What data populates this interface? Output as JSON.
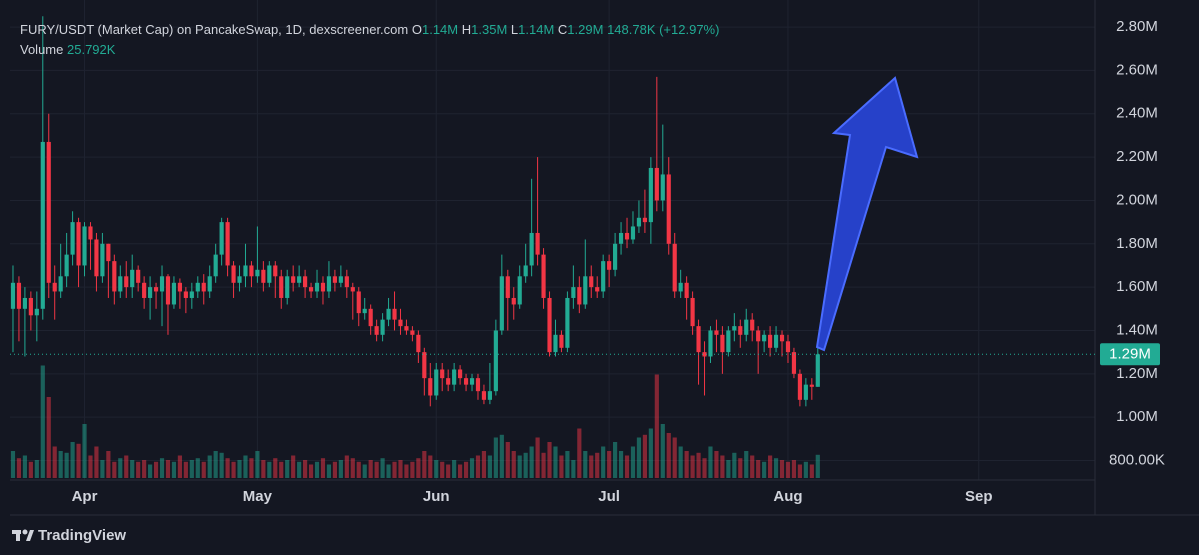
{
  "chart_data": {
    "type": "candlestick",
    "title": "FURY/USDT (Market Cap) on PancakeSwap, 1D, dexscreener.com",
    "ohlc_names": [
      "O",
      "H",
      "L",
      "C"
    ],
    "ohlc_labels": [
      "1.14M",
      "1.35M",
      "1.14M",
      "1.29M"
    ],
    "change": "148.78K (+12.97%)",
    "volume_name": "Volume",
    "volume_label": "25.792K",
    "brand": "TradingView",
    "up_color": "#22ab94",
    "down_color": "#f23645",
    "grid": true,
    "xlim": [
      -0.5,
      181.5
    ],
    "xticks": [
      {
        "value": 12,
        "label": "Apr"
      },
      {
        "value": 41,
        "label": "May"
      },
      {
        "value": 71,
        "label": "Jun"
      },
      {
        "value": 100,
        "label": "Jul"
      },
      {
        "value": 130,
        "label": "Aug"
      },
      {
        "value": 162,
        "label": "Sep"
      }
    ],
    "ylim": [
      0.71,
      2.925
    ],
    "yticks": [
      {
        "value": 0.8,
        "label": "800.00K"
      },
      {
        "value": 1.0,
        "label": "1.00M"
      },
      {
        "value": 1.2,
        "label": "1.20M"
      },
      {
        "value": 1.4,
        "label": "1.40M"
      },
      {
        "value": 1.6,
        "label": "1.60M"
      },
      {
        "value": 1.8,
        "label": "1.80M"
      },
      {
        "value": 2.0,
        "label": "2.00M"
      },
      {
        "value": 2.2,
        "label": "2.20M"
      },
      {
        "value": 2.4,
        "label": "2.40M"
      },
      {
        "value": 2.6,
        "label": "2.60M"
      },
      {
        "value": 2.8,
        "label": "2.80M"
      }
    ],
    "last_price": {
      "value": 1.29,
      "label": "1.29M"
    },
    "open": [
      1.5,
      1.62,
      1.5,
      1.55,
      1.47,
      1.5,
      2.27,
      1.62,
      1.58,
      1.65,
      1.75,
      1.9,
      1.7,
      1.88,
      1.82,
      1.65,
      1.8,
      1.72,
      1.58,
      1.65,
      1.6,
      1.68,
      1.62,
      1.55,
      1.6,
      1.58,
      1.65,
      1.52,
      1.62,
      1.58,
      1.55,
      1.58,
      1.62,
      1.58,
      1.65,
      1.75,
      1.9,
      1.7,
      1.62,
      1.65,
      1.7,
      1.65,
      1.68,
      1.62,
      1.7,
      1.65,
      1.55,
      1.65,
      1.62,
      1.65,
      1.6,
      1.58,
      1.62,
      1.58,
      1.65,
      1.62,
      1.65,
      1.6,
      1.58,
      1.48,
      1.5,
      1.42,
      1.38,
      1.45,
      1.5,
      1.45,
      1.42,
      1.4,
      1.38,
      1.3,
      1.18,
      1.1,
      1.22,
      1.18,
      1.15,
      1.22,
      1.18,
      1.15,
      1.18,
      1.12,
      1.08,
      1.12,
      1.4,
      1.65,
      1.55,
      1.52,
      1.65,
      1.7,
      1.85,
      1.75,
      1.55,
      1.3,
      1.38,
      1.32,
      1.55,
      1.6,
      1.52,
      1.65,
      1.6,
      1.58,
      1.72,
      1.68,
      1.8,
      1.85,
      1.82,
      1.88,
      1.92,
      1.9,
      2.15,
      2.0,
      2.12,
      1.8,
      1.58,
      1.62,
      1.55,
      1.42,
      1.3,
      1.28,
      1.4,
      1.38,
      1.3,
      1.4,
      1.42,
      1.38,
      1.45,
      1.4,
      1.35,
      1.38,
      1.32,
      1.38,
      1.35,
      1.3,
      1.2,
      1.08,
      1.15,
      1.14
    ],
    "high": [
      1.7,
      1.65,
      1.6,
      1.58,
      1.58,
      2.85,
      2.4,
      1.7,
      1.8,
      1.85,
      1.95,
      1.92,
      1.9,
      1.9,
      1.85,
      1.85,
      1.8,
      1.75,
      1.7,
      1.72,
      1.75,
      1.7,
      1.65,
      1.65,
      1.62,
      1.7,
      1.66,
      1.65,
      1.64,
      1.6,
      1.62,
      1.65,
      1.66,
      1.7,
      1.8,
      1.92,
      1.92,
      1.72,
      1.7,
      1.8,
      1.72,
      1.88,
      1.72,
      1.72,
      1.72,
      1.68,
      1.68,
      1.7,
      1.7,
      1.68,
      1.62,
      1.68,
      1.65,
      1.72,
      1.68,
      1.7,
      1.68,
      1.62,
      1.6,
      1.55,
      1.52,
      1.45,
      1.48,
      1.55,
      1.58,
      1.5,
      1.45,
      1.42,
      1.4,
      1.32,
      1.25,
      1.25,
      1.25,
      1.22,
      1.25,
      1.24,
      1.2,
      1.2,
      1.2,
      1.15,
      1.25,
      1.45,
      1.75,
      1.68,
      1.6,
      1.7,
      1.8,
      2.1,
      2.2,
      1.78,
      1.58,
      1.45,
      1.4,
      1.58,
      1.7,
      1.65,
      1.82,
      1.7,
      1.65,
      1.75,
      1.75,
      1.85,
      1.9,
      1.92,
      1.95,
      2.0,
      2.05,
      2.2,
      2.57,
      2.35,
      2.2,
      1.85,
      1.68,
      1.65,
      1.58,
      1.45,
      1.35,
      1.42,
      1.45,
      1.42,
      1.42,
      1.48,
      1.45,
      1.5,
      1.48,
      1.42,
      1.4,
      1.42,
      1.42,
      1.4,
      1.38,
      1.32,
      1.22,
      1.18,
      1.18,
      1.35
    ],
    "low": [
      1.3,
      1.35,
      1.28,
      1.4,
      1.35,
      1.45,
      1.55,
      1.45,
      1.55,
      1.6,
      1.7,
      1.6,
      1.65,
      1.68,
      1.58,
      1.62,
      1.55,
      1.52,
      1.55,
      1.55,
      1.55,
      1.58,
      1.5,
      1.45,
      1.5,
      1.42,
      1.38,
      1.5,
      1.5,
      1.48,
      1.5,
      1.55,
      1.52,
      1.55,
      1.62,
      1.7,
      1.65,
      1.55,
      1.58,
      1.6,
      1.6,
      1.62,
      1.58,
      1.6,
      1.55,
      1.5,
      1.52,
      1.58,
      1.6,
      1.55,
      1.55,
      1.55,
      1.52,
      1.55,
      1.58,
      1.6,
      1.55,
      1.45,
      1.42,
      1.45,
      1.38,
      1.35,
      1.35,
      1.42,
      1.4,
      1.38,
      1.38,
      1.35,
      1.25,
      1.1,
      1.05,
      1.08,
      1.12,
      1.12,
      1.12,
      1.15,
      1.12,
      1.12,
      1.08,
      1.06,
      1.06,
      1.1,
      1.38,
      1.4,
      1.45,
      1.5,
      1.62,
      1.65,
      1.7,
      1.5,
      1.28,
      1.28,
      1.3,
      1.3,
      1.5,
      1.48,
      1.5,
      1.55,
      1.55,
      1.55,
      1.6,
      1.65,
      1.75,
      1.78,
      1.8,
      1.85,
      1.85,
      1.8,
      1.95,
      1.95,
      1.75,
      1.55,
      1.55,
      1.45,
      1.38,
      1.15,
      1.1,
      1.25,
      1.3,
      1.2,
      1.28,
      1.35,
      1.32,
      1.35,
      1.35,
      1.2,
      1.3,
      1.28,
      1.3,
      1.28,
      1.25,
      1.18,
      1.05,
      1.05,
      1.08,
      1.14
    ],
    "close": [
      1.62,
      1.5,
      1.55,
      1.47,
      1.5,
      2.27,
      1.62,
      1.58,
      1.65,
      1.75,
      1.9,
      1.7,
      1.88,
      1.82,
      1.65,
      1.8,
      1.72,
      1.58,
      1.65,
      1.6,
      1.68,
      1.62,
      1.55,
      1.6,
      1.58,
      1.65,
      1.52,
      1.62,
      1.58,
      1.55,
      1.58,
      1.62,
      1.58,
      1.65,
      1.75,
      1.9,
      1.7,
      1.62,
      1.65,
      1.7,
      1.65,
      1.68,
      1.62,
      1.7,
      1.65,
      1.55,
      1.65,
      1.62,
      1.65,
      1.6,
      1.58,
      1.62,
      1.58,
      1.65,
      1.62,
      1.65,
      1.6,
      1.58,
      1.48,
      1.5,
      1.42,
      1.38,
      1.45,
      1.5,
      1.45,
      1.42,
      1.4,
      1.38,
      1.3,
      1.18,
      1.1,
      1.22,
      1.18,
      1.15,
      1.22,
      1.18,
      1.15,
      1.18,
      1.12,
      1.08,
      1.12,
      1.4,
      1.65,
      1.55,
      1.52,
      1.65,
      1.7,
      1.85,
      1.75,
      1.55,
      1.3,
      1.38,
      1.32,
      1.55,
      1.6,
      1.52,
      1.65,
      1.6,
      1.58,
      1.72,
      1.68,
      1.8,
      1.85,
      1.82,
      1.88,
      1.92,
      1.9,
      2.15,
      2.0,
      2.12,
      1.8,
      1.58,
      1.62,
      1.55,
      1.42,
      1.3,
      1.28,
      1.4,
      1.38,
      1.3,
      1.4,
      1.42,
      1.38,
      1.45,
      1.4,
      1.35,
      1.38,
      1.32,
      1.38,
      1.35,
      1.3,
      1.2,
      1.08,
      1.15,
      1.14,
      1.29
    ],
    "volume": [
      30,
      22,
      25,
      18,
      20,
      125,
      90,
      35,
      30,
      28,
      40,
      38,
      60,
      25,
      35,
      20,
      30,
      18,
      22,
      25,
      20,
      18,
      20,
      15,
      18,
      22,
      20,
      18,
      25,
      18,
      20,
      22,
      18,
      25,
      30,
      28,
      22,
      18,
      20,
      25,
      22,
      30,
      20,
      18,
      22,
      18,
      20,
      25,
      18,
      20,
      15,
      18,
      22,
      15,
      18,
      20,
      25,
      22,
      18,
      15,
      20,
      18,
      22,
      15,
      18,
      20,
      15,
      18,
      22,
      30,
      25,
      20,
      18,
      15,
      20,
      15,
      18,
      22,
      25,
      30,
      25,
      45,
      48,
      40,
      30,
      25,
      28,
      35,
      45,
      28,
      40,
      35,
      25,
      30,
      20,
      55,
      30,
      25,
      28,
      35,
      30,
      40,
      30,
      25,
      35,
      45,
      48,
      55,
      115,
      60,
      50,
      45,
      35,
      30,
      25,
      28,
      22,
      35,
      30,
      25,
      20,
      28,
      22,
      30,
      25,
      20,
      18,
      25,
      22,
      20,
      18,
      20,
      15,
      18,
      15,
      25.792
    ]
  }
}
